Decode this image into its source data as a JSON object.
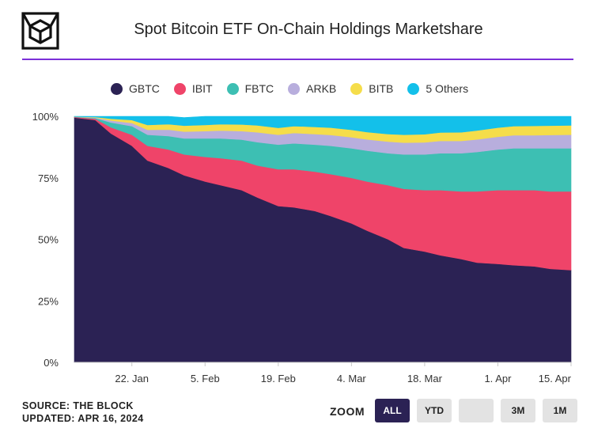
{
  "header": {
    "title": "Spot Bitcoin ETF On-Chain Holdings Marketshare",
    "logo_icon": "cube-icon"
  },
  "legend": [
    {
      "name": "GBTC",
      "color": "#2b2254"
    },
    {
      "name": "IBIT",
      "color": "#ef4469"
    },
    {
      "name": "FBTC",
      "color": "#3dbfb3"
    },
    {
      "name": "ARKB",
      "color": "#b8aedd"
    },
    {
      "name": "BITB",
      "color": "#f5dd4a"
    },
    {
      "name": "5 Others",
      "color": "#13c0ea"
    }
  ],
  "footer": {
    "source": "SOURCE: THE BLOCK",
    "updated": "UPDATED: APR 16, 2024"
  },
  "zoom": {
    "label": "ZOOM",
    "buttons": [
      {
        "label": "ALL",
        "active": true
      },
      {
        "label": "YTD",
        "active": false
      },
      {
        "label": "",
        "active": false
      },
      {
        "label": "3M",
        "active": false
      },
      {
        "label": "1M",
        "active": false
      }
    ]
  },
  "chart_data": {
    "type": "area",
    "stacked": true,
    "title": "Spot Bitcoin ETF On-Chain Holdings Marketshare",
    "x": [
      "2024-01-11",
      "2024-01-15",
      "2024-01-18",
      "2024-01-22",
      "2024-01-25",
      "2024-01-29",
      "2024-02-01",
      "2024-02-05",
      "2024-02-08",
      "2024-02-12",
      "2024-02-15",
      "2024-02-19",
      "2024-02-22",
      "2024-02-26",
      "2024-02-29",
      "2024-03-04",
      "2024-03-07",
      "2024-03-11",
      "2024-03-14",
      "2024-03-18",
      "2024-03-21",
      "2024-03-25",
      "2024-03-28",
      "2024-04-01",
      "2024-04-04",
      "2024-04-08",
      "2024-04-11",
      "2024-04-15"
    ],
    "x_ticks": [
      "22. Jan",
      "5. Feb",
      "19. Feb",
      "4. Mar",
      "18. Mar",
      "1. Apr",
      "15. Apr"
    ],
    "x_tick_dates": [
      "2024-01-22",
      "2024-02-05",
      "2024-02-19",
      "2024-03-04",
      "2024-03-18",
      "2024-04-01",
      "2024-04-15"
    ],
    "y_ticks": [
      "0%",
      "25%",
      "50%",
      "75%",
      "100%"
    ],
    "ylim": [
      0,
      100
    ],
    "series": [
      {
        "name": "GBTC",
        "color": "#2b2254",
        "values": [
          99.5,
          98.5,
          93,
          88,
          82,
          79,
          76,
          73.5,
          72,
          70,
          67,
          63.5,
          63,
          61.5,
          59.5,
          56.5,
          53.5,
          50,
          46.5,
          45,
          43.5,
          42,
          40.5,
          40,
          39.5,
          39,
          38,
          37.5
        ]
      },
      {
        "name": "IBIT",
        "color": "#ef4469",
        "values": [
          0.2,
          0.5,
          2.5,
          4.5,
          6,
          7.5,
          8.5,
          10,
          11,
          12,
          13,
          15,
          15.5,
          16,
          17,
          18.5,
          20,
          22,
          24,
          25,
          26.5,
          27.5,
          29,
          30,
          30.5,
          31,
          31.5,
          32
        ]
      },
      {
        "name": "FBTC",
        "color": "#3dbfb3",
        "values": [
          0.1,
          0.3,
          2,
          3.5,
          4.5,
          5.5,
          6.5,
          7.5,
          8,
          8.5,
          9.5,
          10,
          10.5,
          11,
          11.5,
          12,
          12.5,
          13,
          14,
          14.5,
          15,
          15.5,
          16,
          16.5,
          17,
          17,
          17.5,
          17.5
        ]
      },
      {
        "name": "ARKB",
        "color": "#b8aedd",
        "values": [
          0.05,
          0.2,
          0.8,
          1.3,
          2,
          2.6,
          2.8,
          3,
          3.2,
          3.5,
          4,
          4,
          4.2,
          4.3,
          4.4,
          4.5,
          4.6,
          4.7,
          4.8,
          4.9,
          5,
          5,
          5.1,
          5.2,
          5.3,
          5.3,
          5.4,
          5.5
        ]
      },
      {
        "name": "BITB",
        "color": "#f5dd4a",
        "values": [
          0.05,
          0.2,
          0.7,
          1.2,
          2,
          2.2,
          2.4,
          2.5,
          2.6,
          2.7,
          2.8,
          2.8,
          2.8,
          2.9,
          3,
          3,
          3,
          3.1,
          3.2,
          3.3,
          3.4,
          3.5,
          3.6,
          3.7,
          3.7,
          3.8,
          3.8,
          3.8
        ]
      },
      {
        "name": "5 Others",
        "color": "#13c0ea",
        "values": [
          0.1,
          0.3,
          1,
          1.5,
          3.5,
          3.2,
          3.3,
          3.5,
          3.2,
          3.3,
          3.7,
          4.7,
          4,
          4.3,
          4.6,
          5.5,
          6.4,
          7.2,
          7.5,
          7.3,
          6.6,
          6.5,
          5.8,
          4.6,
          4,
          3.9,
          3.8,
          3.7
        ]
      }
    ]
  }
}
